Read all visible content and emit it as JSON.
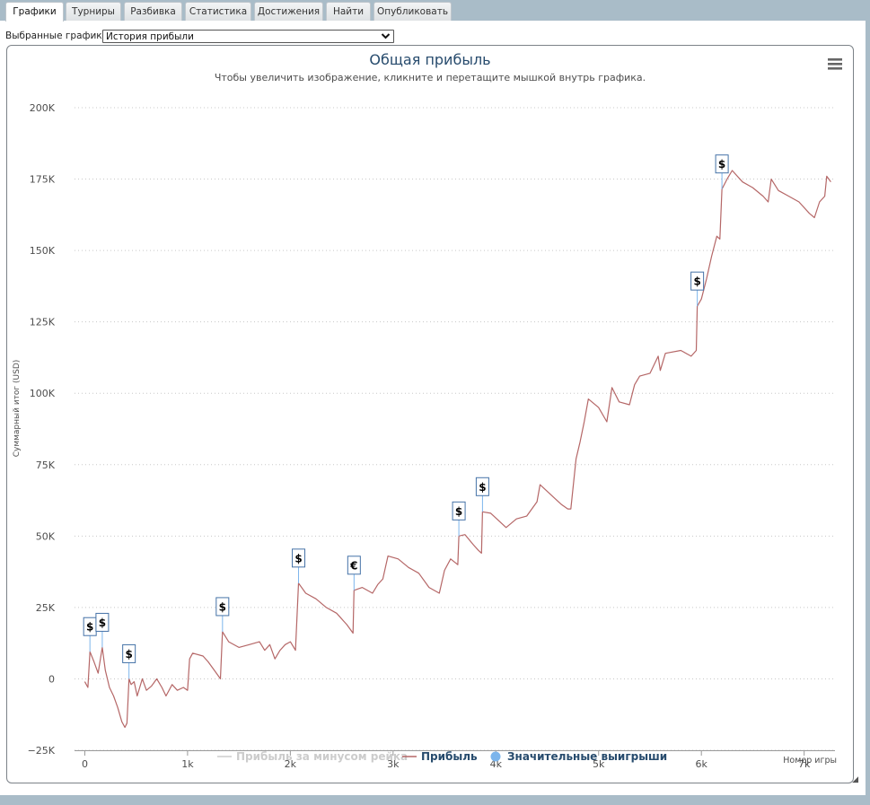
{
  "tabs": [
    {
      "label": "Графики",
      "active": true
    },
    {
      "label": "Турниры"
    },
    {
      "label": "Разбивка"
    },
    {
      "label": "Статистика"
    },
    {
      "label": "Достижения"
    },
    {
      "label": "Найти"
    },
    {
      "label": "Опубликовать"
    }
  ],
  "selector": {
    "label": "Выбранные графики:",
    "value": "История прибыли"
  },
  "menu_icon": "hamburger-menu-icon",
  "chart_data": {
    "type": "line",
    "title": "Общая прибыль",
    "subtitle": "Чтобы увеличить изображение, кликните и перетащите мышкой внутрь графика.",
    "ylabel": "Суммарный итог (USD)",
    "xlabel": "Номер игры",
    "xlim": [
      -100,
      7300
    ],
    "ylim": [
      -25000,
      200000
    ],
    "x_ticks": [
      0,
      1000,
      2000,
      3000,
      4000,
      5000,
      6000,
      7000
    ],
    "x_tick_labels": [
      "0",
      "1k",
      "2k",
      "3k",
      "4k",
      "5k",
      "6k",
      "7k"
    ],
    "y_ticks": [
      -25000,
      0,
      25000,
      50000,
      75000,
      100000,
      125000,
      150000,
      175000,
      200000
    ],
    "y_tick_labels": [
      "−25K",
      "0",
      "25K",
      "50K",
      "75K",
      "100K",
      "125K",
      "150K",
      "175K",
      "200K"
    ],
    "grid": true,
    "legend_placement": "bottom",
    "colors": {
      "profit": "#b56767",
      "excl_rake": "#cccccc",
      "big_wins": "#7cb5ec",
      "flag_border": "#4572a7"
    },
    "series": [
      {
        "name": "Прибыль за минусом рейка",
        "hidden": true,
        "points": []
      },
      {
        "name": "Прибыль",
        "points": [
          [
            0,
            -1000
          ],
          [
            30,
            -3000
          ],
          [
            50,
            9500
          ],
          [
            90,
            6000
          ],
          [
            130,
            2000
          ],
          [
            170,
            11000
          ],
          [
            200,
            3000
          ],
          [
            240,
            -3000
          ],
          [
            280,
            -6000
          ],
          [
            320,
            -10000
          ],
          [
            360,
            -15000
          ],
          [
            390,
            -17000
          ],
          [
            410,
            -15500
          ],
          [
            430,
            0
          ],
          [
            450,
            -2000
          ],
          [
            480,
            -1000
          ],
          [
            510,
            -6000
          ],
          [
            560,
            0
          ],
          [
            600,
            -4000
          ],
          [
            650,
            -2500
          ],
          [
            700,
            0
          ],
          [
            750,
            -3000
          ],
          [
            790,
            -6000
          ],
          [
            850,
            -2000
          ],
          [
            900,
            -4000
          ],
          [
            960,
            -3000
          ],
          [
            1000,
            -4000
          ],
          [
            1020,
            7000
          ],
          [
            1050,
            9000
          ],
          [
            1150,
            8000
          ],
          [
            1200,
            6000
          ],
          [
            1260,
            3000
          ],
          [
            1320,
            0
          ],
          [
            1340,
            16500
          ],
          [
            1400,
            13000
          ],
          [
            1500,
            11000
          ],
          [
            1600,
            12000
          ],
          [
            1700,
            13000
          ],
          [
            1750,
            10000
          ],
          [
            1800,
            12000
          ],
          [
            1850,
            7000
          ],
          [
            1900,
            10000
          ],
          [
            1950,
            12000
          ],
          [
            2000,
            13000
          ],
          [
            2050,
            10000
          ],
          [
            2080,
            33500
          ],
          [
            2150,
            30000
          ],
          [
            2250,
            28000
          ],
          [
            2350,
            25000
          ],
          [
            2450,
            23000
          ],
          [
            2550,
            19000
          ],
          [
            2610,
            16000
          ],
          [
            2620,
            31000
          ],
          [
            2700,
            32000
          ],
          [
            2800,
            30000
          ],
          [
            2850,
            33000
          ],
          [
            2900,
            35000
          ],
          [
            2950,
            43000
          ],
          [
            3050,
            42000
          ],
          [
            3150,
            39000
          ],
          [
            3250,
            37000
          ],
          [
            3350,
            32000
          ],
          [
            3450,
            30000
          ],
          [
            3500,
            38000
          ],
          [
            3560,
            42000
          ],
          [
            3630,
            40000
          ],
          [
            3640,
            50000
          ],
          [
            3700,
            50500
          ],
          [
            3780,
            47000
          ],
          [
            3830,
            45000
          ],
          [
            3860,
            44000
          ],
          [
            3870,
            58500
          ],
          [
            3950,
            58000
          ],
          [
            4100,
            53000
          ],
          [
            4200,
            56000
          ],
          [
            4300,
            57000
          ],
          [
            4400,
            62000
          ],
          [
            4430,
            68000
          ],
          [
            4550,
            64000
          ],
          [
            4640,
            61000
          ],
          [
            4700,
            59500
          ],
          [
            4730,
            59500
          ],
          [
            4780,
            77000
          ],
          [
            4820,
            83000
          ],
          [
            4860,
            90000
          ],
          [
            4900,
            98000
          ],
          [
            5000,
            95000
          ],
          [
            5080,
            90000
          ],
          [
            5130,
            102000
          ],
          [
            5200,
            97000
          ],
          [
            5300,
            96000
          ],
          [
            5350,
            103000
          ],
          [
            5400,
            106000
          ],
          [
            5500,
            107000
          ],
          [
            5580,
            113000
          ],
          [
            5600,
            108000
          ],
          [
            5650,
            114000
          ],
          [
            5800,
            115000
          ],
          [
            5900,
            113000
          ],
          [
            5950,
            115000
          ],
          [
            5960,
            130500
          ],
          [
            6000,
            133000
          ],
          [
            6050,
            140000
          ],
          [
            6100,
            148000
          ],
          [
            6150,
            155000
          ],
          [
            6180,
            154000
          ],
          [
            6200,
            171500
          ],
          [
            6250,
            175000
          ],
          [
            6300,
            178000
          ],
          [
            6400,
            174000
          ],
          [
            6500,
            172000
          ],
          [
            6600,
            169000
          ],
          [
            6650,
            167000
          ],
          [
            6680,
            175000
          ],
          [
            6750,
            171000
          ],
          [
            6850,
            169000
          ],
          [
            6950,
            167000
          ],
          [
            7050,
            163000
          ],
          [
            7100,
            161500
          ],
          [
            7150,
            167000
          ],
          [
            7200,
            169000
          ],
          [
            7220,
            176000
          ],
          [
            7260,
            174000
          ]
        ]
      }
    ],
    "big_wins": [
      {
        "x": 50,
        "y": 9500,
        "symbol": "$"
      },
      {
        "x": 170,
        "y": 11000,
        "symbol": "$"
      },
      {
        "x": 430,
        "y": 0,
        "symbol": "$"
      },
      {
        "x": 1340,
        "y": 16500,
        "symbol": "$"
      },
      {
        "x": 2080,
        "y": 33500,
        "symbol": "$"
      },
      {
        "x": 2620,
        "y": 31000,
        "symbol": "€"
      },
      {
        "x": 3640,
        "y": 50000,
        "symbol": "$"
      },
      {
        "x": 3870,
        "y": 58500,
        "symbol": "$"
      },
      {
        "x": 5960,
        "y": 130500,
        "symbol": "$"
      },
      {
        "x": 6200,
        "y": 171500,
        "symbol": "$"
      }
    ],
    "legend": [
      {
        "label": "Прибыль за минусом рейка",
        "type": "line",
        "color": "#cccccc",
        "hidden": true
      },
      {
        "label": "Прибыль",
        "type": "line",
        "color": "#b56767"
      },
      {
        "label": "Значительные выигрыши",
        "type": "dot",
        "color": "#7cb5ec"
      }
    ]
  }
}
